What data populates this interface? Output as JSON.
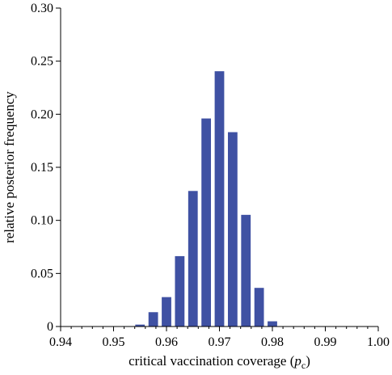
{
  "chart_data": {
    "type": "bar",
    "title": "",
    "xlabel": "critical vaccination coverage (",
    "xlabel_symbol": "p",
    "xlabel_subscript": "c",
    "xlabel_close": ")",
    "ylabel": "relative posterior frequency",
    "xlim": [
      0.94,
      1.0
    ],
    "ylim": [
      0,
      0.3
    ],
    "x_ticks": [
      0.94,
      0.95,
      0.96,
      0.97,
      0.98,
      0.99,
      1.0
    ],
    "x_tick_labels": [
      "0.94",
      "0.95",
      "0.96",
      "0.97",
      "0.98",
      "0.99",
      "1.00"
    ],
    "y_ticks": [
      0,
      0.05,
      0.1,
      0.15,
      0.2,
      0.25,
      0.3
    ],
    "y_tick_labels": [
      "0",
      "0.05",
      "0.10",
      "0.15",
      "0.20",
      "0.25",
      "0.30"
    ],
    "x": [
      0.9525,
      0.955,
      0.9575,
      0.96,
      0.9625,
      0.965,
      0.9675,
      0.97,
      0.9725,
      0.975,
      0.9775,
      0.98,
      0.9825
    ],
    "values": [
      0.0004,
      0.0018,
      0.0135,
      0.0277,
      0.0663,
      0.1277,
      0.196,
      0.2405,
      0.1831,
      0.1052,
      0.0364,
      0.0049,
      0.0003
    ],
    "bin_width": 0.0025,
    "bar_color": "#3f51a3",
    "grid": false,
    "legend": "none"
  }
}
